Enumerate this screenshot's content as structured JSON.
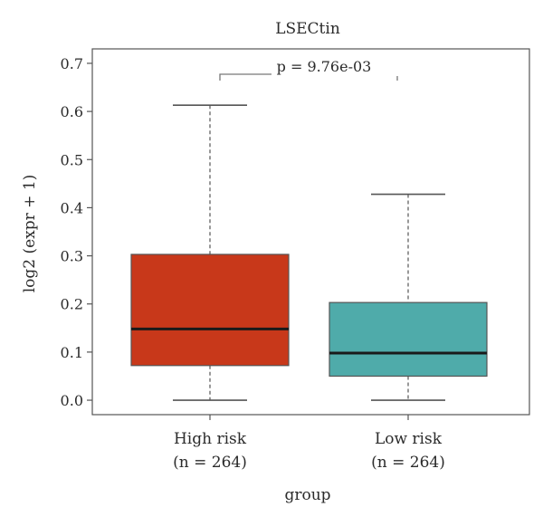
{
  "chart_data": {
    "type": "box",
    "title": "LSECtin",
    "xlabel": "group",
    "ylabel": "log2 (expr + 1)",
    "ylim": [
      -0.03,
      0.73
    ],
    "yticks": [
      0.0,
      0.1,
      0.2,
      0.3,
      0.4,
      0.5,
      0.6,
      0.7
    ],
    "ytick_labels": [
      "0.0",
      "0.1",
      "0.2",
      "0.3",
      "0.4",
      "0.5",
      "0.6",
      "0.7"
    ],
    "grid": false,
    "annotation": "p = 9.76e-03",
    "groups": [
      {
        "label": "High risk",
        "n_label": "(n = 264)",
        "color": "#c8381a",
        "min": 0.0,
        "q1": 0.072,
        "median": 0.148,
        "q3": 0.303,
        "max": 0.613
      },
      {
        "label": "Low risk",
        "n_label": "(n = 264)",
        "color": "#4fabaa",
        "min": 0.0,
        "q1": 0.05,
        "median": 0.098,
        "q3": 0.203,
        "max": 0.428
      }
    ]
  }
}
